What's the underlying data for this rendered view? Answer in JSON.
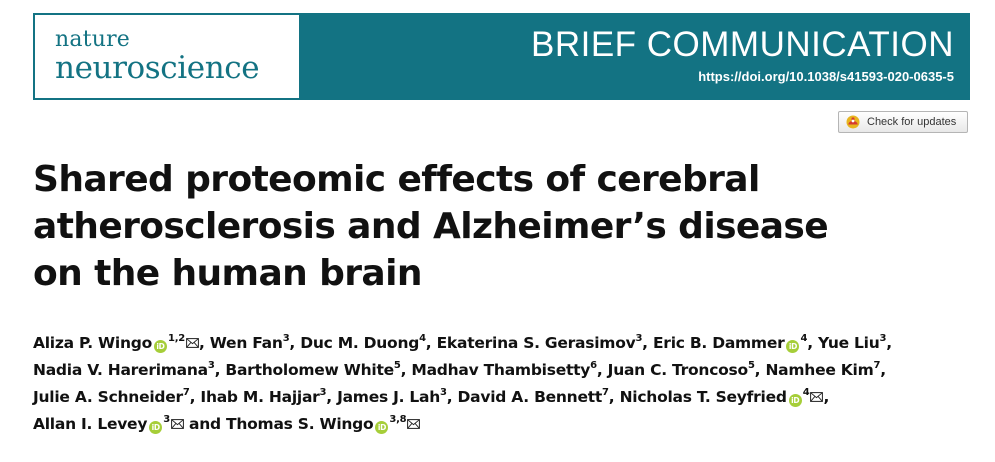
{
  "journal": {
    "name_line1": "nature",
    "name_line2": "neuroscience",
    "brand_color": "#137383"
  },
  "article_type": "BRIEF COMMUNICATION",
  "doi": "https://doi.org/10.1038/s41593-020-0635-5",
  "check_updates": {
    "label": "Check for updates",
    "icon": "crossmark-icon"
  },
  "title_lines": [
    "Shared proteomic effects of cerebral",
    "atherosclerosis and Alzheimer’s disease",
    "on the human brain"
  ],
  "authors": [
    {
      "name": "Aliza P. Wingo",
      "aff": "1,2",
      "orcid": true,
      "mail": true
    },
    {
      "name": "Wen Fan",
      "aff": "3"
    },
    {
      "name": "Duc M. Duong",
      "aff": "4"
    },
    {
      "name": "Ekaterina S. Gerasimov",
      "aff": "3"
    },
    {
      "name": "Eric B. Dammer",
      "aff": "4",
      "orcid": true
    },
    {
      "name": "Yue Liu",
      "aff": "3"
    },
    {
      "name": "Nadia V. Harerimana",
      "aff": "3"
    },
    {
      "name": "Bartholomew White",
      "aff": "5"
    },
    {
      "name": "Madhav Thambisetty",
      "aff": "6"
    },
    {
      "name": "Juan C. Troncoso",
      "aff": "5"
    },
    {
      "name": "Namhee Kim",
      "aff": "7"
    },
    {
      "name": "Julie A. Schneider",
      "aff": "7"
    },
    {
      "name": "Ihab M. Hajjar",
      "aff": "3"
    },
    {
      "name": "James J. Lah",
      "aff": "3"
    },
    {
      "name": "David A. Bennett",
      "aff": "7"
    },
    {
      "name": "Nicholas T. Seyfried",
      "aff": "4",
      "orcid": true,
      "mail": true
    },
    {
      "name": "Allan I. Levey",
      "aff": "3",
      "orcid": true,
      "mail": true
    },
    {
      "name": "Thomas S. Wingo",
      "aff": "3,8",
      "orcid": true,
      "mail": true
    }
  ],
  "author_separator": ", ",
  "author_final_separator": " and ",
  "orcid_badge_text": "iD",
  "orcid_color": "#a6ce39"
}
